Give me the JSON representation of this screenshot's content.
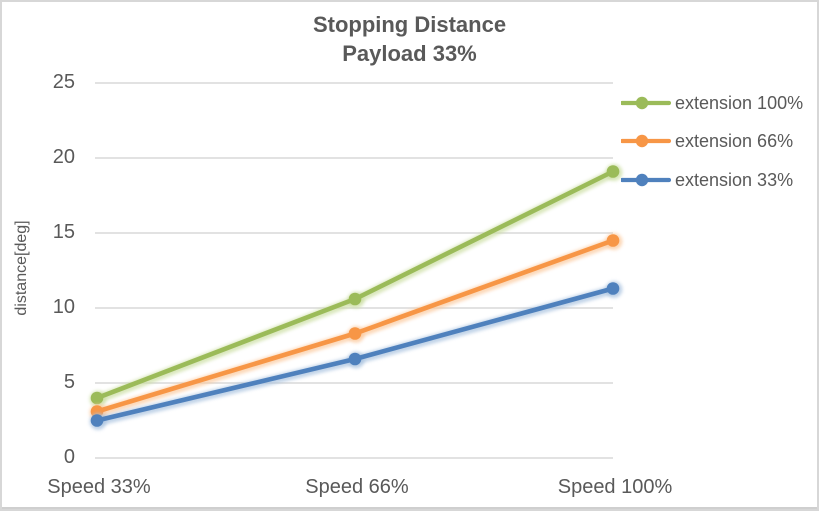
{
  "chart_data": {
    "type": "line",
    "title": "Stopping Distance",
    "subtitle": "Payload 33%",
    "categories": [
      "Speed 33%",
      "Speed 66%",
      "Speed 100%"
    ],
    "series": [
      {
        "name": "extension 100%",
        "values": [
          4.0,
          10.6,
          19.1
        ],
        "color": "#9BBB59",
        "glow_color": "#CBDEA2"
      },
      {
        "name": "extension 66%",
        "values": [
          3.1,
          8.3,
          14.5
        ],
        "color": "#F79646",
        "glow_color": "#FBC99D"
      },
      {
        "name": "extension 33%",
        "values": [
          2.5,
          6.6,
          11.3
        ],
        "color": "#4F81BD",
        "glow_color": "#A9C2DF"
      }
    ],
    "xlabel": "",
    "ylabel": "distance[deg]",
    "ylim": [
      0,
      25
    ],
    "yticks": [
      0,
      5,
      10,
      15,
      20,
      25
    ],
    "grid": true,
    "legend_position": "right",
    "marker": "circle"
  },
  "colors": {
    "text": "#595959",
    "gridline": "#D9D9D9",
    "background": "#FFFFFF",
    "frame_border": "#D7D7D7"
  }
}
